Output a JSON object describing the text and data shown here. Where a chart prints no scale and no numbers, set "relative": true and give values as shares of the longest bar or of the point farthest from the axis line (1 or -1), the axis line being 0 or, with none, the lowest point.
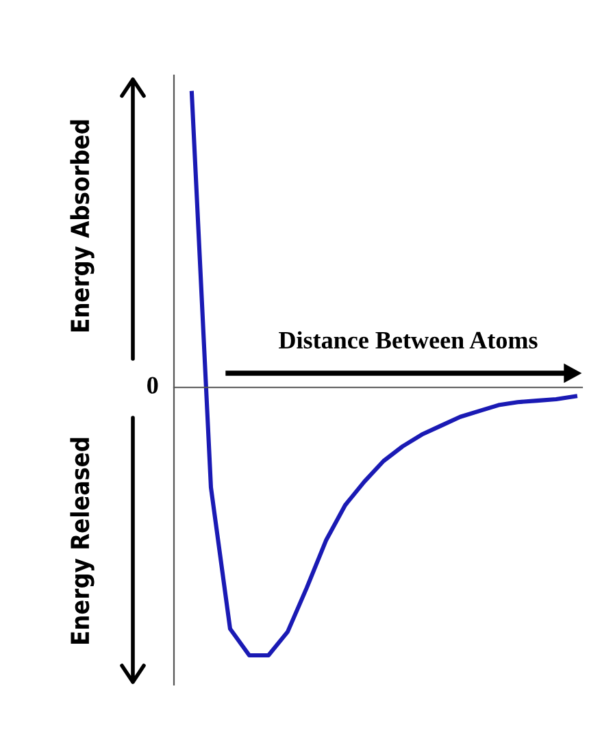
{
  "chart_data": {
    "type": "line",
    "relative": true,
    "xlabel": "Distance Between Atoms",
    "annotations": [
      "Energy Absorbed",
      "Energy Released",
      "0"
    ],
    "categories": [
      null,
      null,
      null,
      null,
      null,
      null,
      null,
      null,
      null,
      null,
      null,
      null,
      null,
      null,
      null,
      null,
      null,
      null,
      null,
      null,
      null
    ],
    "series": [
      {
        "color": "#1a1ab4",
        "values": [
          1.0,
          -0.34,
          -0.82,
          -0.91,
          -0.91,
          -0.83,
          -0.68,
          -0.52,
          -0.4,
          -0.32,
          -0.25,
          -0.2,
          -0.16,
          -0.13,
          -0.1,
          -0.08,
          -0.06,
          -0.05,
          -0.045,
          -0.04,
          -0.03
        ]
      }
    ],
    "line_style": "solid"
  }
}
